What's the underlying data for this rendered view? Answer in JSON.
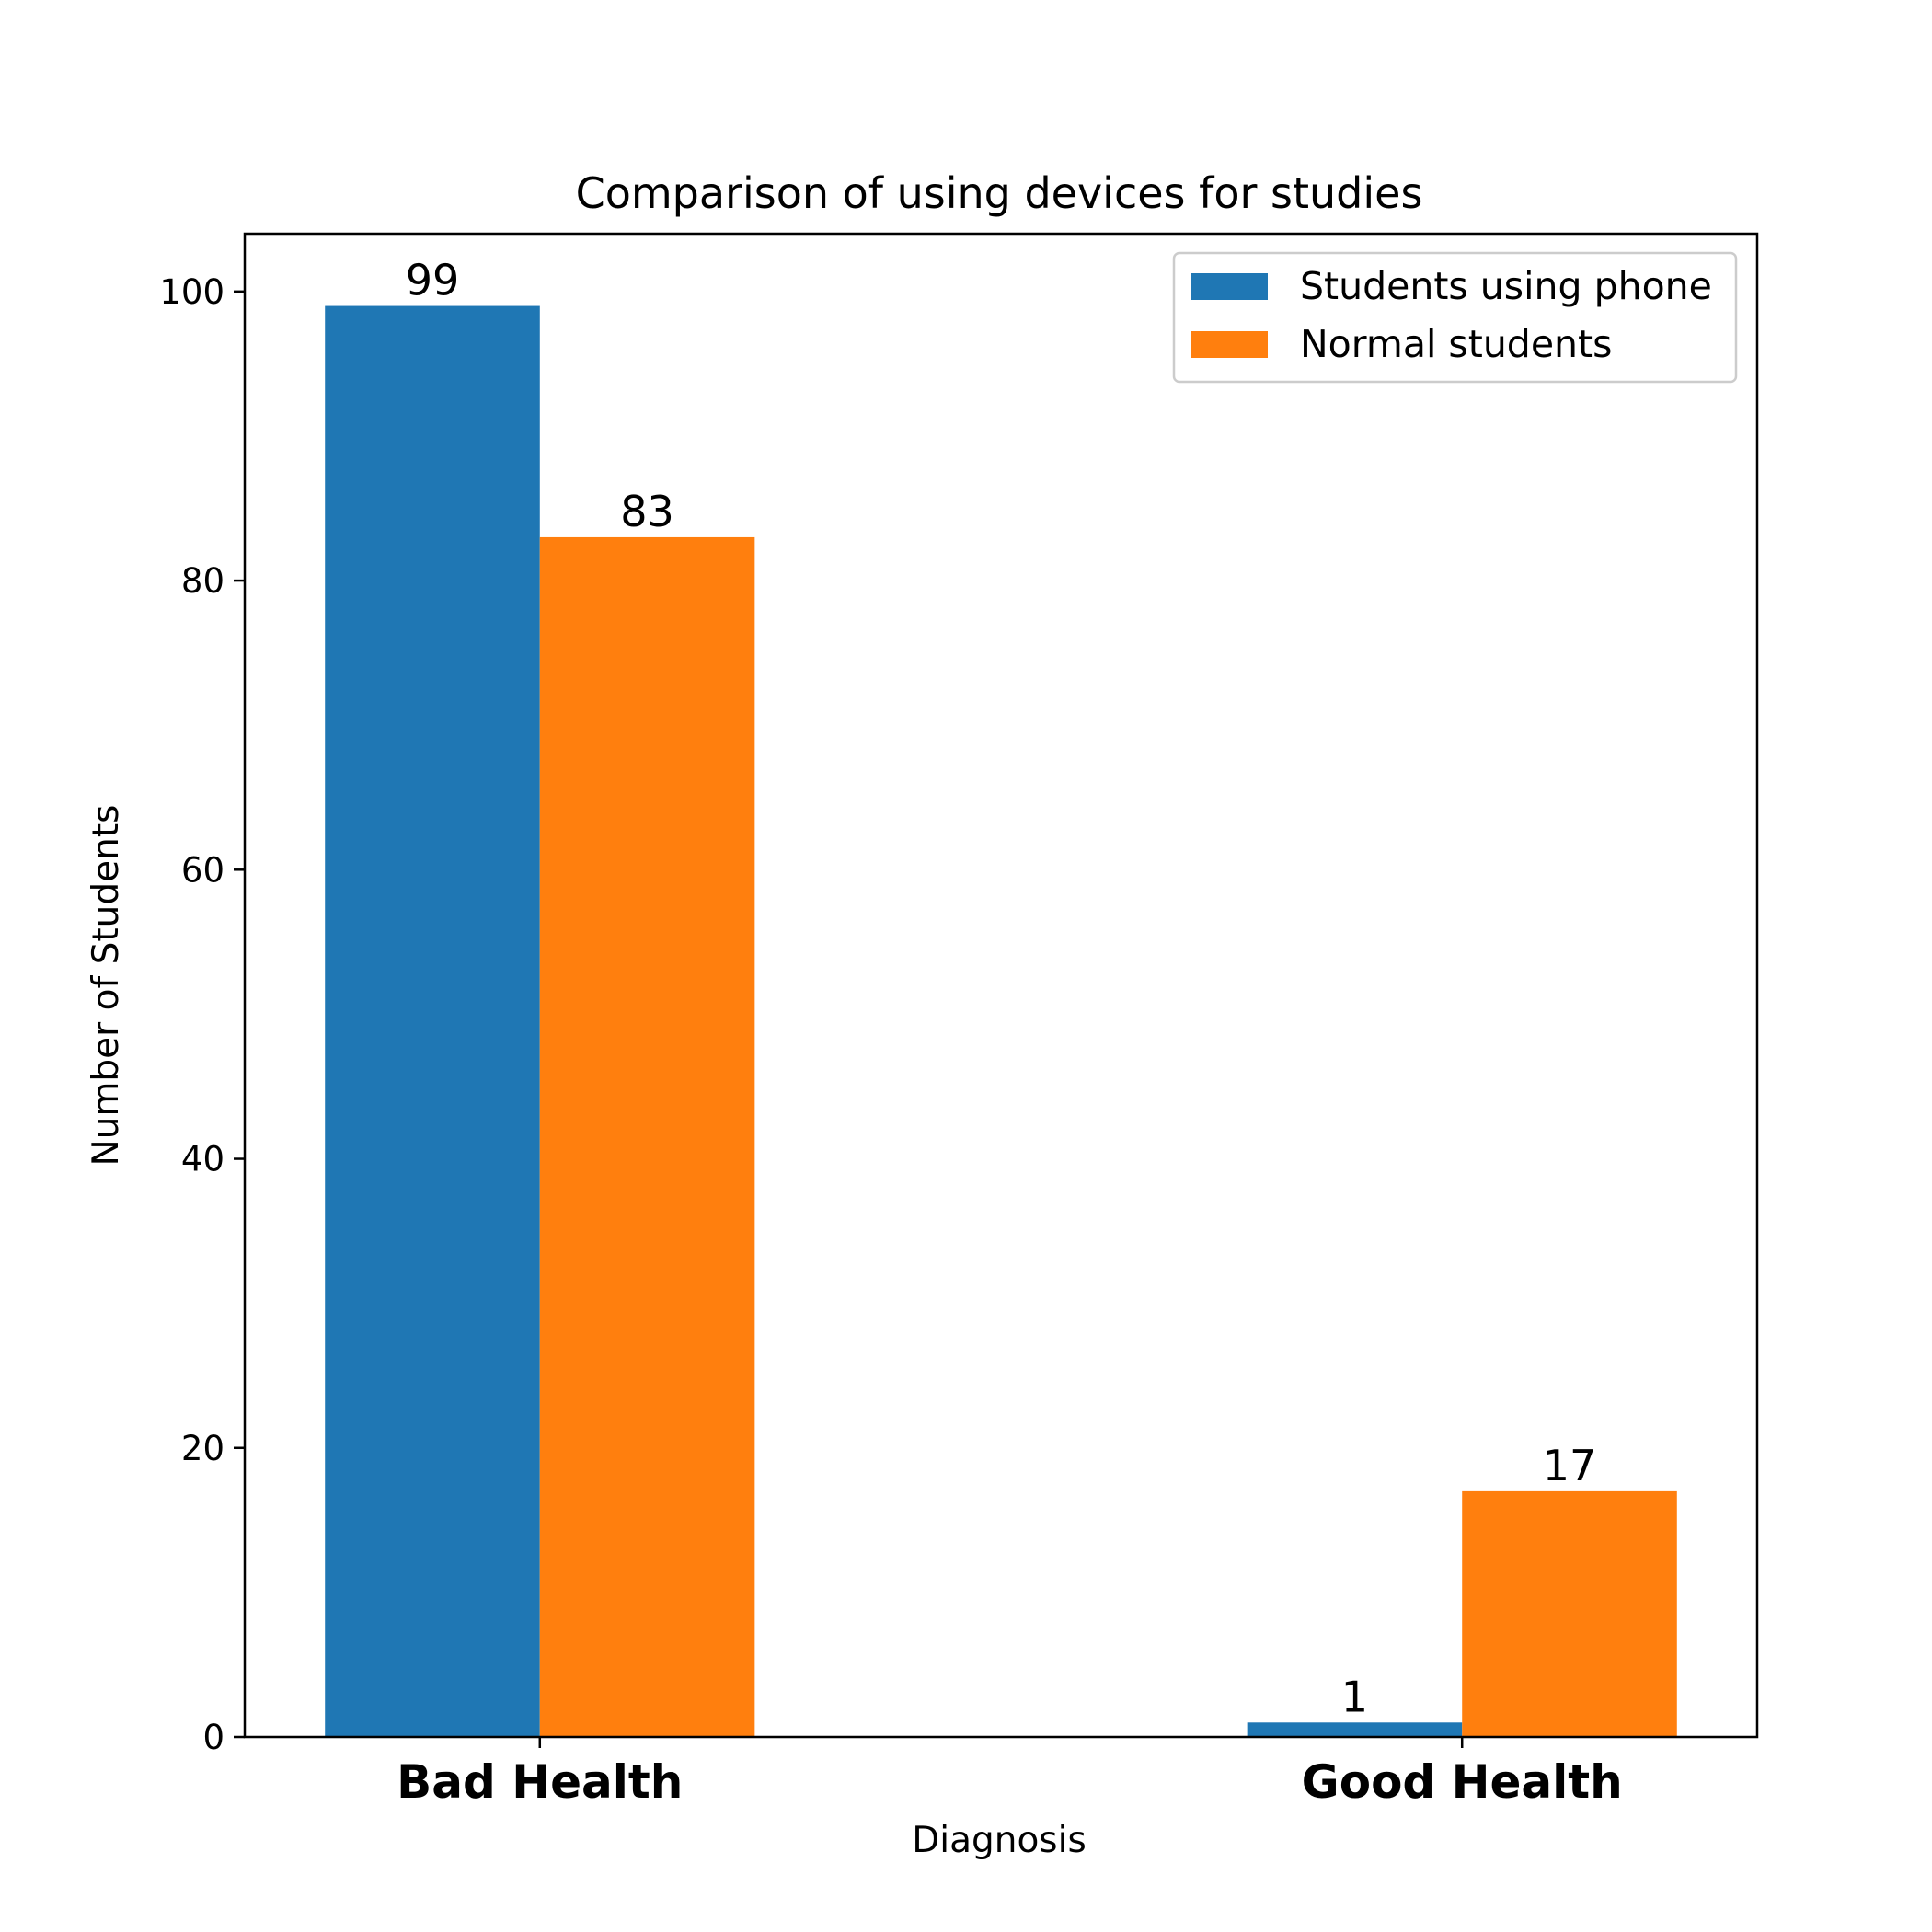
{
  "chart_data": {
    "type": "bar",
    "title": "Comparison of using devices for studies",
    "xlabel": "Diagnosis",
    "ylabel": "Number of Students",
    "categories": [
      "Bad Health",
      "Good Health"
    ],
    "series": [
      {
        "name": "Students using phone",
        "values": [
          99,
          1
        ],
        "color": "#1f77b4"
      },
      {
        "name": "Normal students",
        "values": [
          83,
          17
        ],
        "color": "#ff7f0e"
      }
    ],
    "ylim": [
      0,
      104
    ],
    "yticks": [
      0,
      20,
      40,
      60,
      80,
      100
    ],
    "legend": "top-right",
    "grid": false
  }
}
